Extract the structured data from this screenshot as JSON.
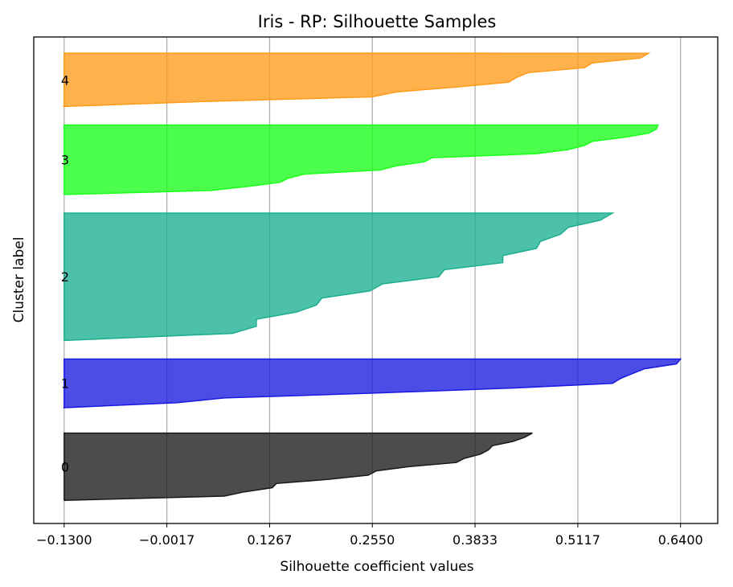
{
  "chart_data": {
    "type": "area",
    "title": "Iris - RP: Silhouette Samples",
    "xlabel": "Silhouette coefficient values",
    "ylabel": "Cluster label",
    "xlim": [
      -0.168,
      0.6865
    ],
    "xticks": [
      "-0.1300",
      "-0.0017",
      "0.1267",
      "0.2550",
      "0.3833",
      "0.5117",
      "0.6400"
    ],
    "xtick_values": [
      -0.13,
      -0.0017,
      0.1267,
      0.255,
      0.3833,
      0.5117,
      0.64
    ],
    "grid": "vertical",
    "series": [
      {
        "name": "0",
        "color": "#1a1a1a",
        "y_range": [
          0,
          29
        ],
        "values": [
          0.455,
          0.445,
          0.43,
          0.405,
          0.4,
          0.39,
          0.37,
          0.36,
          0.3,
          0.26,
          0.25,
          0.2,
          0.135,
          0.13,
          0.095,
          0.07,
          -0.13
        ]
      },
      {
        "name": "1",
        "color": "#1a1ae0",
        "y_range": [
          40,
          61
        ],
        "values": [
          0.64,
          0.635,
          0.595,
          0.58,
          0.565,
          0.555,
          0.425,
          0.26,
          0.07,
          0.01,
          -0.13
        ]
      },
      {
        "name": "2",
        "color": "#1aae8f",
        "y_range": [
          69,
          124
        ],
        "values": [
          0.555,
          0.54,
          0.5,
          0.49,
          0.465,
          0.46,
          0.418,
          0.418,
          0.345,
          0.338,
          0.268,
          0.252,
          0.192,
          0.185,
          0.16,
          0.11,
          0.11,
          0.08,
          -0.13
        ]
      },
      {
        "name": "3",
        "color": "#1aff1a",
        "y_range": [
          132,
          162
        ],
        "values": [
          0.612,
          0.61,
          0.6,
          0.57,
          0.53,
          0.52,
          0.5,
          0.46,
          0.33,
          0.32,
          0.285,
          0.265,
          0.17,
          0.15,
          0.14,
          0.1,
          0.055,
          -0.13
        ]
      },
      {
        "name": "4",
        "color": "#ff9b1a",
        "y_range": [
          170,
          193
        ],
        "values": [
          0.6,
          0.59,
          0.53,
          0.52,
          0.45,
          0.435,
          0.425,
          0.36,
          0.285,
          0.255,
          0.04,
          -0.13
        ]
      }
    ]
  }
}
